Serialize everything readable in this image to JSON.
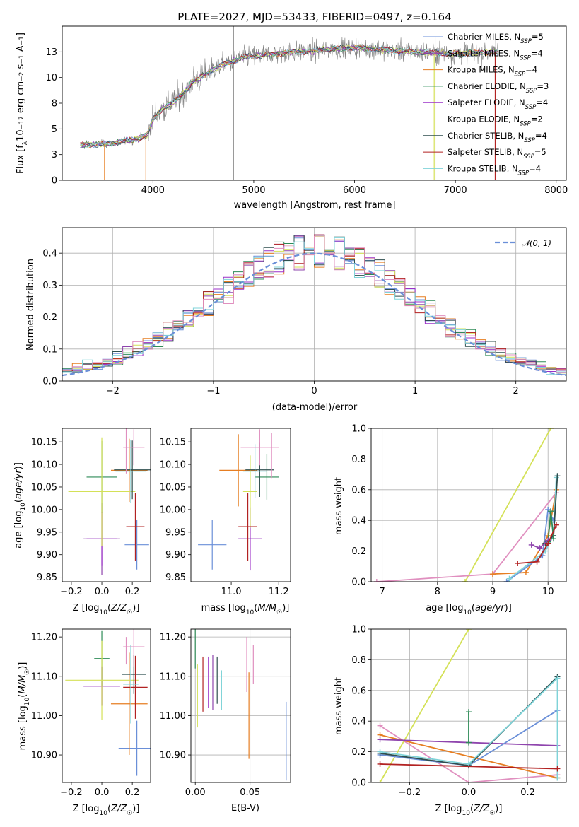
{
  "chart_data": [
    {
      "id": "spectrum",
      "type": "line",
      "title": "PLATE=2027, MJD=53433, FIBERID=0497, z=0.164",
      "xlabel": "wavelength [Angstrom, rest frame]",
      "ylabel": "Flux [f_λ10^-17 erg cm^-2 s^-1 A^-1]",
      "xlim": [
        3100,
        8100
      ],
      "ylim": [
        0,
        15
      ],
      "xticks": [
        4000,
        5000,
        6000,
        7000,
        8000
      ],
      "yticks": [
        0.0,
        2.5,
        5.0,
        7.5,
        10.0,
        12.5
      ],
      "legend_position": "right",
      "legend": [
        {
          "model": "Chabrier MILES",
          "n": "N",
          "sub": "SSP",
          "eq": "=5",
          "color": "#6a8fd8"
        },
        {
          "model": "Salpeter MILES",
          "n": "N",
          "sub": "SSP",
          "eq": "=4",
          "color": "#8e44ad"
        },
        {
          "model": "Kroupa MILES",
          "n": "N",
          "sub": "SSP",
          "eq": "=4",
          "color": "#e67e22"
        },
        {
          "model": "Chabrier ELODIE",
          "n": "N",
          "sub": "SSP",
          "eq": "=3",
          "color": "#2e8b57"
        },
        {
          "model": "Salpeter ELODIE",
          "n": "N",
          "sub": "SSP",
          "eq": "=4",
          "color": "#9b30c8"
        },
        {
          "model": "Kroupa ELODIE",
          "n": "N",
          "sub": "SSP",
          "eq": "=2",
          "color": "#d4e157"
        },
        {
          "model": "Chabrier STELIB",
          "n": "N",
          "sub": "SSP",
          "eq": "=4",
          "color": "#2f4f4f"
        },
        {
          "model": "Salpeter STELIB",
          "n": "N",
          "sub": "SSP",
          "eq": "=5",
          "color": "#b22222"
        },
        {
          "model": "Kroupa STELIB",
          "n": "N",
          "sub": "SSP",
          "eq": "=4",
          "color": "#7fd3d8"
        }
      ],
      "data_color": "#808080",
      "continuum": {
        "x": [
          3280,
          3400,
          3500,
          3600,
          3700,
          3800,
          3900,
          3950,
          4000,
          4100,
          4200,
          4300,
          4400,
          4500,
          4600,
          4700,
          4800,
          4900,
          5000,
          5200,
          5400,
          5600,
          5800,
          6000,
          6200,
          6400,
          6600,
          6800,
          7000,
          7200,
          7420
        ],
        "y": [
          3.4,
          3.5,
          3.5,
          3.6,
          3.8,
          3.9,
          4.2,
          4.5,
          6.0,
          7.0,
          7.6,
          8.4,
          9.6,
          10.2,
          10.8,
          11.3,
          11.6,
          12.0,
          12.1,
          12.3,
          12.5,
          12.6,
          12.8,
          12.9,
          12.8,
          12.6,
          12.5,
          12.4,
          12.3,
          12.4,
          12.5
        ]
      }
    },
    {
      "id": "residuals",
      "type": "histogram",
      "xlabel": "(data-model)/error",
      "ylabel": "Normed distribution",
      "xlim": [
        -2.5,
        2.5
      ],
      "ylim": [
        0,
        0.48
      ],
      "xticks": [
        -2,
        -1,
        0,
        1,
        2
      ],
      "yticks": [
        0.0,
        0.1,
        0.2,
        0.3,
        0.4
      ],
      "grid": true,
      "bins": 50,
      "legend": "𝒩(0, 1)",
      "legend_position": "top-right",
      "reference_curve": {
        "name": "𝒩(0, 1)",
        "mean": 0,
        "sigma": 1,
        "color": "#6a8fd8",
        "style": "dashed"
      }
    },
    {
      "id": "age_vs_Z",
      "type": "errorbar",
      "xlabel": "Z [log10(Z/Z☉)]",
      "ylabel": "age [log10(age/yr)]",
      "xlim": [
        -0.26,
        0.32
      ],
      "ylim": [
        9.84,
        10.18
      ],
      "xticks": [
        -0.2,
        0.0,
        0.2
      ],
      "yticks": [
        9.85,
        9.9,
        9.95,
        10.0,
        10.05,
        10.1,
        10.15
      ],
      "points": [
        {
          "x": 0.23,
          "y": 9.922,
          "xerr": 0.08,
          "yerr": 0.055,
          "color": "#6a8fd8"
        },
        {
          "x": 0.0,
          "y": 9.935,
          "xerr": 0.12,
          "yerr": 0.08,
          "color": "#8e44ad"
        },
        {
          "x": 0.18,
          "y": 10.087,
          "xerr": 0.12,
          "yerr": 0.07,
          "color": "#e67e22"
        },
        {
          "x": 0.0,
          "y": 10.072,
          "xerr": 0.1,
          "yerr": 0.08,
          "color": "#2e8b57"
        },
        {
          "x": 0.0,
          "y": 9.935,
          "xerr": 0.1,
          "yerr": 0.06,
          "color": "#9b30c8"
        },
        {
          "x": 0.0,
          "y": 10.04,
          "xerr": 0.22,
          "yerr": 0.12,
          "color": "#d4e157"
        },
        {
          "x": 0.2,
          "y": 10.088,
          "xerr": 0.12,
          "yerr": 0.065,
          "color": "#2f4f4f"
        },
        {
          "x": 0.22,
          "y": 9.962,
          "xerr": 0.06,
          "yerr": 0.075,
          "color": "#b22222"
        },
        {
          "x": 0.19,
          "y": 10.085,
          "xerr": 0.1,
          "yerr": 0.07,
          "color": "#7fd3d8"
        },
        {
          "x": 0.21,
          "y": 10.138,
          "xerr": 0.07,
          "yerr": 0.04,
          "color": "#e08fbf"
        },
        {
          "x": 0.16,
          "y": 10.13,
          "xerr": 0.0,
          "yerr": 0.05,
          "color": "#e08fbf"
        }
      ]
    },
    {
      "id": "age_vs_mass",
      "type": "errorbar",
      "xlabel": "mass [log10(M/M☉)]",
      "xlim": [
        10.83,
        11.25
      ],
      "ylim": [
        9.84,
        10.18
      ],
      "xticks": [
        11.0,
        11.2
      ],
      "yticks": [
        9.85,
        9.9,
        9.95,
        10.0,
        10.05,
        10.1,
        10.15
      ],
      "points": [
        {
          "x": 10.92,
          "y": 9.922,
          "xerr": 0.06,
          "yerr": 0.055,
          "color": "#6a8fd8"
        },
        {
          "x": 11.08,
          "y": 9.935,
          "xerr": 0.05,
          "yerr": 0.07,
          "color": "#8e44ad"
        },
        {
          "x": 11.03,
          "y": 10.087,
          "xerr": 0.08,
          "yerr": 0.08,
          "color": "#e67e22"
        },
        {
          "x": 11.15,
          "y": 10.072,
          "xerr": 0.05,
          "yerr": 0.05,
          "color": "#2e8b57"
        },
        {
          "x": 11.08,
          "y": 9.935,
          "xerr": 0.05,
          "yerr": 0.07,
          "color": "#9b30c8"
        },
        {
          "x": 11.08,
          "y": 10.04,
          "xerr": 0.03,
          "yerr": 0.08,
          "color": "#d4e157"
        },
        {
          "x": 11.12,
          "y": 10.088,
          "xerr": 0.06,
          "yerr": 0.06,
          "color": "#2f4f4f"
        },
        {
          "x": 11.07,
          "y": 9.962,
          "xerr": 0.04,
          "yerr": 0.075,
          "color": "#b22222"
        },
        {
          "x": 11.1,
          "y": 10.085,
          "xerr": 0.05,
          "yerr": 0.06,
          "color": "#7fd3d8"
        },
        {
          "x": 11.12,
          "y": 10.138,
          "xerr": 0.08,
          "yerr": 0.04,
          "color": "#e08fbf"
        },
        {
          "x": 11.17,
          "y": 10.12,
          "xerr": 0.0,
          "yerr": 0.05,
          "color": "#e08fbf"
        }
      ]
    },
    {
      "id": "weight_vs_age",
      "type": "line",
      "xlabel": "age [log10(age/yr)]",
      "ylabel": "mass weight",
      "xlim": [
        6.8,
        10.33
      ],
      "ylim": [
        0,
        1.0
      ],
      "xticks": [
        7,
        8,
        9,
        10
      ],
      "yticks": [
        0.0,
        0.2,
        0.4,
        0.6,
        0.8,
        1.0
      ],
      "grid": true,
      "series": [
        {
          "color": "#d4e157",
          "x": [
            8.5,
            10.05
          ],
          "y": [
            0.0,
            1.0
          ]
        },
        {
          "color": "#e08fbf",
          "x": [
            6.9,
            9.0,
            10.15
          ],
          "y": [
            0.0,
            0.05,
            0.58
          ]
        },
        {
          "color": "#e67e22",
          "x": [
            9.0,
            9.6,
            10.0,
            10.15
          ],
          "y": [
            0.05,
            0.06,
            0.3,
            0.6
          ]
        },
        {
          "color": "#6a8fd8",
          "x": [
            9.25,
            9.9,
            10.0,
            10.1
          ],
          "y": [
            0.0,
            0.17,
            0.47,
            0.4
          ]
        },
        {
          "color": "#7fd3d8",
          "x": [
            9.3,
            9.95,
            10.1,
            10.15
          ],
          "y": [
            0.02,
            0.2,
            0.3,
            0.68
          ]
        },
        {
          "color": "#2f4f4f",
          "x": [
            9.95,
            10.1,
            10.17
          ],
          "y": [
            0.25,
            0.3,
            0.69
          ]
        },
        {
          "color": "#2e8b57",
          "x": [
            10.0,
            10.05,
            10.1
          ],
          "y": [
            0.26,
            0.46,
            0.28
          ]
        },
        {
          "color": "#8e44ad",
          "x": [
            9.7,
            9.85,
            10.0
          ],
          "y": [
            0.24,
            0.22,
            0.27
          ]
        },
        {
          "color": "#b22222",
          "x": [
            9.45,
            9.8,
            10.0,
            10.15
          ],
          "y": [
            0.12,
            0.13,
            0.25,
            0.37
          ]
        }
      ]
    },
    {
      "id": "mass_vs_Z",
      "type": "errorbar",
      "xlabel": "Z [log10(Z/Z☉)]",
      "ylabel": "mass [log10(M/M☉)]",
      "xlim": [
        -0.26,
        0.32
      ],
      "ylim": [
        10.83,
        11.22
      ],
      "xticks": [
        -0.2,
        0.0,
        0.2
      ],
      "yticks": [
        10.9,
        11.0,
        11.1,
        11.2
      ],
      "points": [
        {
          "x": 0.23,
          "y": 10.917,
          "xerr": 0.12,
          "yerr": 0.07,
          "color": "#6a8fd8"
        },
        {
          "x": 0.0,
          "y": 11.075,
          "xerr": 0.12,
          "yerr": 0.05,
          "color": "#8e44ad"
        },
        {
          "x": 0.18,
          "y": 11.03,
          "xerr": 0.12,
          "yerr": 0.13,
          "color": "#e67e22"
        },
        {
          "x": 0.0,
          "y": 11.145,
          "xerr": 0.05,
          "yerr": 0.07,
          "color": "#2e8b57"
        },
        {
          "x": 0.0,
          "y": 11.075,
          "xerr": 0.12,
          "yerr": 0.05,
          "color": "#9b30c8"
        },
        {
          "x": 0.0,
          "y": 11.09,
          "xerr": 0.24,
          "yerr": 0.1,
          "color": "#d4e157"
        },
        {
          "x": 0.21,
          "y": 11.105,
          "xerr": 0.08,
          "yerr": 0.05,
          "color": "#2f4f4f"
        },
        {
          "x": 0.22,
          "y": 11.072,
          "xerr": 0.08,
          "yerr": 0.08,
          "color": "#b22222"
        },
        {
          "x": 0.19,
          "y": 11.08,
          "xerr": 0.05,
          "yerr": 0.1,
          "color": "#7fd3d8"
        },
        {
          "x": 0.21,
          "y": 11.175,
          "xerr": 0.07,
          "yerr": 0.05,
          "color": "#e08fbf"
        },
        {
          "x": 0.16,
          "y": 11.165,
          "xerr": 0.0,
          "yerr": 0.035,
          "color": "#e08fbf"
        }
      ]
    },
    {
      "id": "mass_vs_EBV",
      "type": "errorbar",
      "xlabel": "E(B-V)",
      "xlim": [
        -0.004,
        0.087
      ],
      "ylim": [
        10.83,
        11.22
      ],
      "xticks": [
        0.0,
        0.05
      ],
      "yticks": [
        10.9,
        11.0,
        11.1,
        11.2
      ],
      "grid": true,
      "points": [
        {
          "x": 0.083,
          "y": 10.935,
          "xerr": 0.0,
          "yerr": 0.1,
          "color": "#6a8fd8"
        },
        {
          "x": 0.016,
          "y": 11.085,
          "xerr": 0.0,
          "yerr": 0.07,
          "color": "#8e44ad"
        },
        {
          "x": 0.049,
          "y": 11.0,
          "xerr": 0.0,
          "yerr": 0.11,
          "color": "#e67e22"
        },
        {
          "x": 0.0,
          "y": 11.17,
          "xerr": 0.0,
          "yerr": 0.05,
          "color": "#2e8b57"
        },
        {
          "x": 0.012,
          "y": 11.085,
          "xerr": 0.0,
          "yerr": 0.065,
          "color": "#9b30c8"
        },
        {
          "x": 0.002,
          "y": 11.05,
          "xerr": 0.0,
          "yerr": 0.08,
          "color": "#d4e157"
        },
        {
          "x": 0.02,
          "y": 11.09,
          "xerr": 0.0,
          "yerr": 0.06,
          "color": "#2f4f4f"
        },
        {
          "x": 0.007,
          "y": 11.08,
          "xerr": 0.0,
          "yerr": 0.07,
          "color": "#b22222"
        },
        {
          "x": 0.024,
          "y": 11.065,
          "xerr": 0.0,
          "yerr": 0.05,
          "color": "#7fd3d8"
        },
        {
          "x": 0.047,
          "y": 11.13,
          "xerr": 0.0,
          "yerr": 0.07,
          "color": "#e08fbf"
        },
        {
          "x": 0.053,
          "y": 11.13,
          "xerr": 0.0,
          "yerr": 0.05,
          "color": "#e08fbf"
        }
      ]
    },
    {
      "id": "weight_vs_Z",
      "type": "line",
      "xlabel": "Z [log10(Z/Z☉)]",
      "ylabel": "mass weight",
      "xlim": [
        -0.33,
        0.33
      ],
      "ylim": [
        0,
        1.0
      ],
      "xticks": [
        -0.2,
        0.0,
        0.2
      ],
      "yticks": [
        0.0,
        0.2,
        0.4,
        0.6,
        0.8,
        1.0
      ],
      "grid": true,
      "series": [
        {
          "color": "#d4e157",
          "x": [
            -0.3,
            0.0
          ],
          "y": [
            0.0,
            1.0
          ]
        },
        {
          "color": "#e08fbf",
          "x": [
            -0.3,
            0.0,
            0.3
          ],
          "y": [
            0.37,
            0.0,
            0.05
          ]
        },
        {
          "color": "#e67e22",
          "x": [
            -0.3,
            0.3
          ],
          "y": [
            0.31,
            0.03
          ]
        },
        {
          "color": "#8e44ad",
          "x": [
            -0.3,
            0.3
          ],
          "y": [
            0.28,
            0.24
          ]
        },
        {
          "color": "#6a8fd8",
          "x": [
            -0.3,
            0.0,
            0.3
          ],
          "y": [
            0.18,
            0.11,
            0.47
          ]
        },
        {
          "color": "#2f4f4f",
          "x": [
            -0.3,
            0.0,
            0.3
          ],
          "y": [
            0.19,
            0.11,
            0.69
          ]
        },
        {
          "color": "#7fd3d8",
          "x": [
            -0.3,
            0.0,
            0.3,
            0.3
          ],
          "y": [
            0.2,
            0.12,
            0.68,
            0.03
          ]
        },
        {
          "color": "#2e8b57",
          "x": [
            0.0,
            0.0
          ],
          "y": [
            0.26,
            0.46
          ]
        },
        {
          "color": "#b22222",
          "x": [
            -0.3,
            0.3
          ],
          "y": [
            0.12,
            0.09
          ]
        }
      ]
    }
  ]
}
